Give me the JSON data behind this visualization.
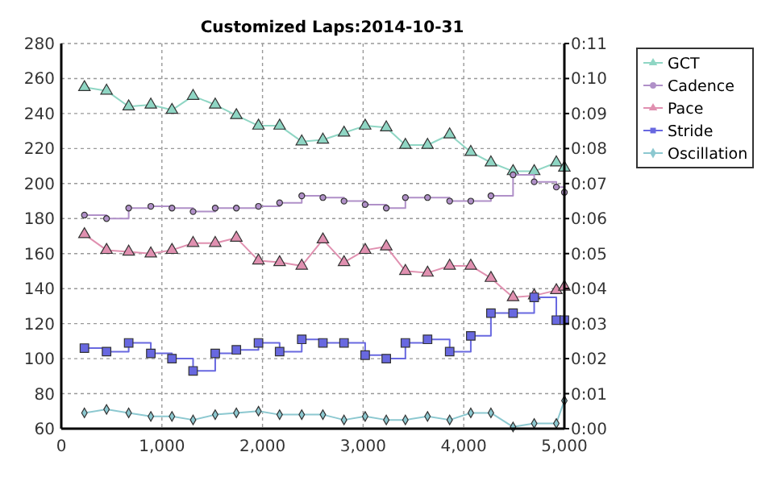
{
  "chart_data": {
    "type": "line",
    "title": "Customized Laps:2014-10-31",
    "x": [
      230,
      450,
      670,
      890,
      1100,
      1310,
      1530,
      1740,
      1960,
      2170,
      2390,
      2600,
      2810,
      3020,
      3230,
      3420,
      3640,
      3860,
      4070,
      4270,
      4490,
      4700,
      4920,
      5000
    ],
    "series": [
      {
        "name": "GCT",
        "type": "line",
        "marker": "triangle",
        "color": "#8fd6c4",
        "values": [
          255,
          253,
          244,
          245,
          242,
          250,
          245,
          239,
          233,
          233,
          224,
          225,
          229,
          233,
          232,
          222,
          222,
          228,
          218,
          212,
          207,
          207,
          212,
          209
        ]
      },
      {
        "name": "Cadence",
        "type": "step",
        "marker": "circle",
        "color": "#b090c8",
        "values": [
          182,
          180,
          186,
          187,
          186,
          184,
          186,
          186,
          187,
          189,
          193,
          192,
          190,
          188,
          186,
          192,
          192,
          190,
          190,
          193,
          205,
          201,
          198,
          195
        ]
      },
      {
        "name": "Pace",
        "type": "line",
        "marker": "triangle",
        "color": "#e090b0",
        "values": [
          171,
          162,
          161,
          160,
          162,
          166,
          166,
          169,
          156,
          155,
          153,
          168,
          155,
          162,
          164,
          150,
          149,
          153,
          153,
          146,
          135,
          136,
          139,
          141
        ]
      },
      {
        "name": "Stride",
        "type": "step",
        "marker": "square",
        "color": "#6868e0",
        "values": [
          106,
          104,
          109,
          103,
          100,
          93,
          103,
          105,
          109,
          104,
          111,
          109,
          109,
          102,
          100,
          109,
          111,
          104,
          113,
          126,
          126,
          135,
          122,
          122
        ]
      },
      {
        "name": "Oscillation",
        "type": "line",
        "marker": "diamond",
        "color": "#8cc8d0",
        "values": [
          69,
          71,
          69,
          67,
          67,
          65,
          68,
          69,
          70,
          68,
          68,
          68,
          65,
          67,
          65,
          65,
          67,
          65,
          69,
          69,
          61,
          63,
          63,
          76
        ]
      }
    ],
    "xlim": [
      0,
      5000
    ],
    "xticks": [
      0,
      {
        "value": 1000,
        "label": "1,000"
      },
      {
        "value": 2000,
        "label": "2,000"
      },
      {
        "value": 3000,
        "label": "3,000"
      },
      {
        "value": 4000,
        "label": "4,000"
      },
      {
        "value": 5000,
        "label": "5,000"
      }
    ],
    "ylim": [
      60,
      280
    ],
    "yticks": [
      60,
      80,
      100,
      120,
      140,
      160,
      180,
      200,
      220,
      240,
      260,
      280
    ],
    "y2lim": [
      0,
      11
    ],
    "y2ticks": [
      {
        "value": 0,
        "label": "0:00"
      },
      {
        "value": 1,
        "label": "0:01"
      },
      {
        "value": 2,
        "label": "0:02"
      },
      {
        "value": 3,
        "label": "0:03"
      },
      {
        "value": 4,
        "label": "0:04"
      },
      {
        "value": 5,
        "label": "0:05"
      },
      {
        "value": 6,
        "label": "0:06"
      },
      {
        "value": 7,
        "label": "0:07"
      },
      {
        "value": 8,
        "label": "0:08"
      },
      {
        "value": 9,
        "label": "0:09"
      },
      {
        "value": 10,
        "label": "0:10"
      },
      {
        "value": 11,
        "label": "0:11"
      }
    ],
    "grid": true,
    "legend": "top right"
  }
}
